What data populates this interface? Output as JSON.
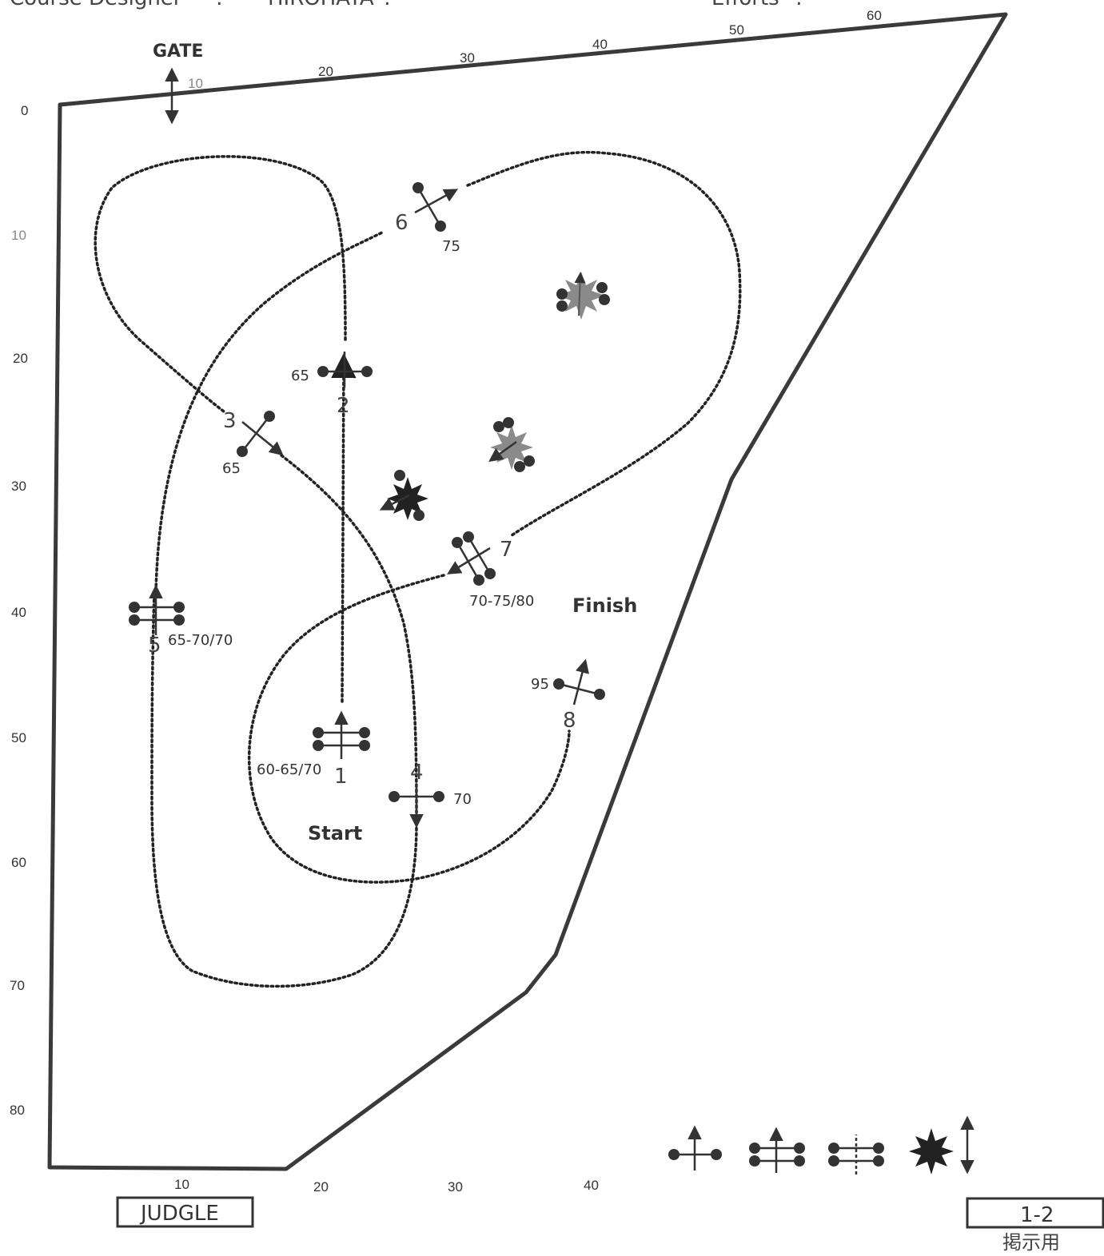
{
  "header": {
    "designer_label": "Course Designer",
    "designer_sep": ":",
    "designer_name": "HIROHATA",
    "designer_tail": ":",
    "designer_extra": "",
    "efforts_label": "Efforts",
    "efforts_sep": ":"
  },
  "gate_label": "GATE",
  "start_label": "Start",
  "finish_label": "Finish",
  "judge_label": "JUDGLE",
  "sheet_id": "1-2",
  "sheet_note": "掲示用",
  "scale": {
    "top": [
      "10",
      "20",
      "30",
      "40",
      "50",
      "60"
    ],
    "left": [
      "0",
      "10",
      "20",
      "30",
      "40",
      "50",
      "60",
      "70",
      "80"
    ],
    "bottom": [
      "10",
      "20",
      "30",
      "40"
    ]
  },
  "obstacles": [
    {
      "number": "1",
      "heights": "60-65/70",
      "type": "oxer"
    },
    {
      "number": "2",
      "heights": "65",
      "type": "vertical"
    },
    {
      "number": "3",
      "heights": "65",
      "type": "vertical"
    },
    {
      "number": "4",
      "heights": "70",
      "type": "vertical"
    },
    {
      "number": "5",
      "heights": "65-70/70",
      "type": "oxer"
    },
    {
      "number": "6",
      "heights": "75",
      "type": "vertical"
    },
    {
      "number": "7",
      "heights": "70-75/80",
      "type": "oxer"
    },
    {
      "number": "8",
      "heights": "95",
      "type": "vertical"
    }
  ],
  "legend": [
    {
      "name": "vertical-symbol"
    },
    {
      "name": "oxer-symbol"
    },
    {
      "name": "triple-bar-symbol"
    },
    {
      "name": "decoration-symbol"
    },
    {
      "name": "direction-symbol"
    }
  ],
  "colors": {
    "ink": "#333333",
    "path": "#222222",
    "decoration": "#888888"
  }
}
